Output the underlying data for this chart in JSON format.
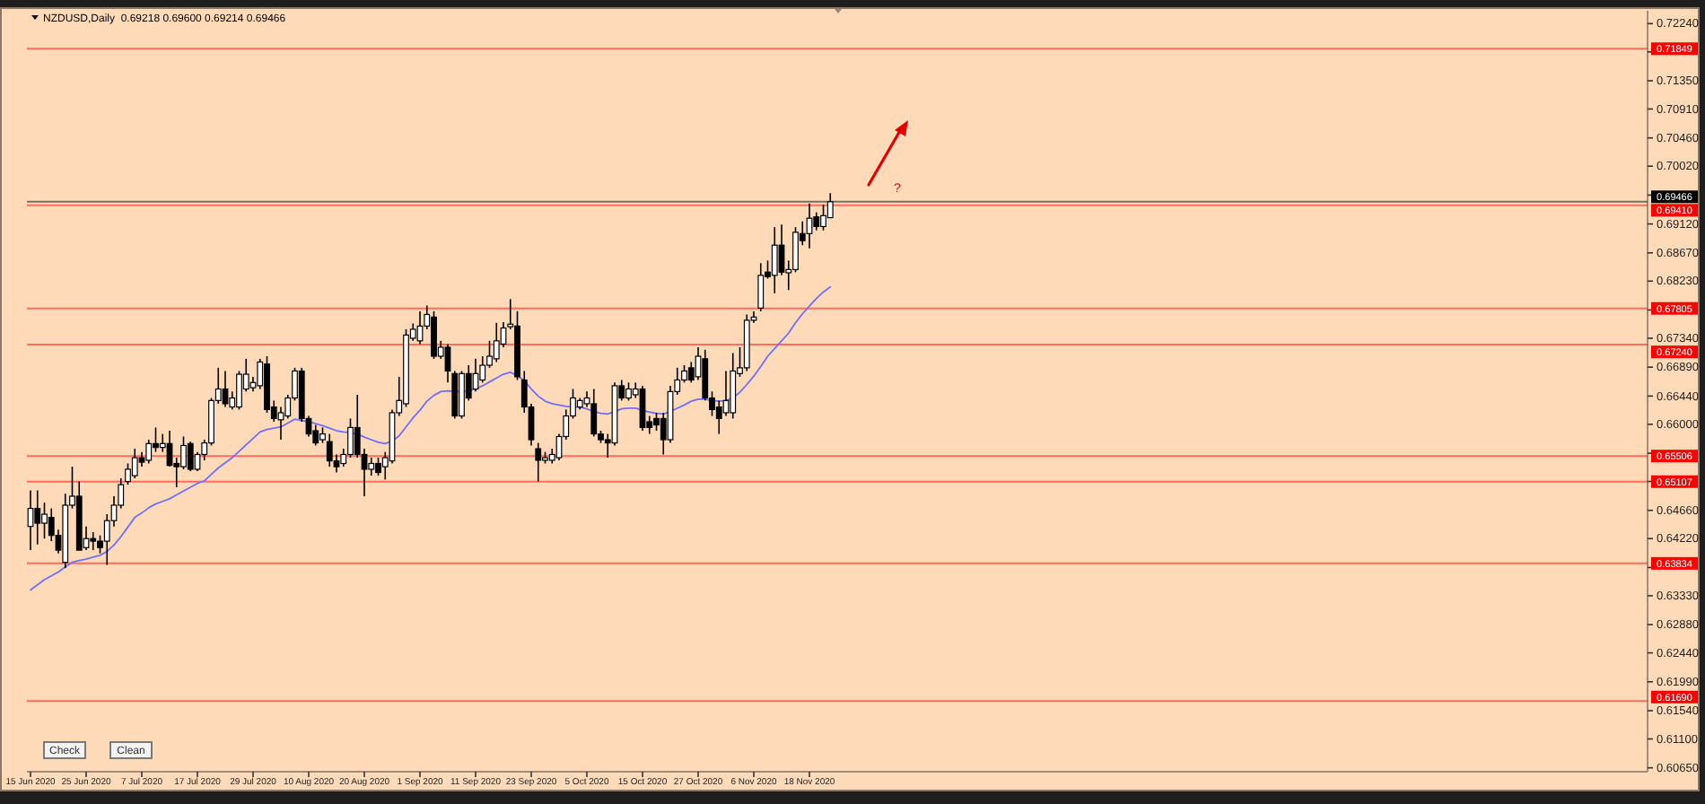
{
  "chart_data": {
    "type": "candlestick",
    "title": "NZDUSD,Daily  0.69218 0.69600 0.69214 0.69466",
    "categories": [
      "15 Jun 2020",
      null,
      null,
      null,
      null,
      null,
      null,
      null,
      "25 Jun 2020",
      null,
      null,
      null,
      null,
      null,
      null,
      null,
      "7 Jul 2020",
      null,
      null,
      null,
      null,
      null,
      null,
      null,
      "17 Jul 2020",
      null,
      null,
      null,
      null,
      null,
      null,
      null,
      "29 Jul 2020",
      null,
      null,
      null,
      null,
      null,
      null,
      null,
      "10 Aug 2020",
      null,
      null,
      null,
      null,
      null,
      null,
      null,
      "20 Aug 2020",
      null,
      null,
      null,
      null,
      null,
      null,
      null,
      "1 Sep 2020",
      null,
      null,
      null,
      null,
      null,
      null,
      null,
      "11 Sep 2020",
      null,
      null,
      null,
      null,
      null,
      null,
      null,
      "23 Sep 2020",
      null,
      null,
      null,
      null,
      null,
      null,
      null,
      "5 Oct 2020",
      null,
      null,
      null,
      null,
      null,
      null,
      null,
      "15 Oct 2020",
      null,
      null,
      null,
      null,
      null,
      null,
      null,
      "27 Oct 2020",
      null,
      null,
      null,
      null,
      null,
      null,
      null,
      "6 Nov 2020",
      null,
      null,
      null,
      null,
      null,
      null,
      null,
      "18 Nov 2020",
      null,
      null,
      null,
      null,
      null,
      null,
      null,
      null,
      null,
      null,
      null,
      null,
      null,
      null,
      null,
      null,
      null,
      null,
      null,
      null,
      null,
      null,
      null,
      null,
      null,
      null,
      null,
      null,
      null,
      null,
      null,
      null,
      null,
      null,
      null,
      null,
      null,
      null,
      null,
      null,
      null,
      null,
      null,
      null,
      null,
      null,
      null,
      null,
      null,
      null,
      null,
      null,
      null,
      null,
      null,
      null,
      null,
      null,
      null,
      null,
      null,
      null,
      null,
      null,
      null,
      null,
      null,
      null,
      null,
      null,
      null,
      null,
      null,
      null,
      null,
      null,
      null,
      null,
      null,
      null,
      null,
      null,
      null,
      null,
      null,
      null,
      null,
      null,
      null,
      null,
      null,
      null,
      null,
      null,
      null,
      null,
      null,
      null,
      null,
      null,
      null,
      null,
      null,
      null,
      null,
      null,
      null,
      null,
      null,
      null,
      null,
      null,
      null,
      null,
      null,
      null,
      null,
      null,
      null,
      null
    ],
    "ylim": [
      0.6059,
      0.7244
    ],
    "yticks": [
      {
        "value": 0.6065,
        "label": "0.60650"
      },
      {
        "value": 0.611,
        "label": "0.61100"
      },
      {
        "value": 0.6154,
        "label": "0.61540"
      },
      {
        "value": 0.6199,
        "label": "0.61990"
      },
      {
        "value": 0.6244,
        "label": "0.62440"
      },
      {
        "value": 0.6288,
        "label": "0.62880"
      },
      {
        "value": 0.6333,
        "label": "0.63330"
      },
      {
        "value": 0.6377,
        "label": null
      },
      {
        "value": 0.6422,
        "label": "0.64220"
      },
      {
        "value": 0.6466,
        "label": "0.64660"
      },
      {
        "value": 0.6511,
        "label": null
      },
      {
        "value": 0.6555,
        "label": null
      },
      {
        "value": 0.66,
        "label": "0.66000"
      },
      {
        "value": 0.6644,
        "label": "0.66440"
      },
      {
        "value": 0.6689,
        "label": "0.66890"
      },
      {
        "value": 0.6734,
        "label": "0.67340"
      },
      {
        "value": 0.6778,
        "label": null
      },
      {
        "value": 0.6823,
        "label": "0.68230"
      },
      {
        "value": 0.6867,
        "label": "0.68670"
      },
      {
        "value": 0.6912,
        "label": "0.69120"
      },
      {
        "value": 0.6957,
        "label": null
      },
      {
        "value": 0.7002,
        "label": "0.70020"
      },
      {
        "value": 0.7046,
        "label": "0.70460"
      },
      {
        "value": 0.7091,
        "label": "0.70910"
      },
      {
        "value": 0.7135,
        "label": "0.71350"
      },
      {
        "value": 0.718,
        "label": null
      },
      {
        "value": 0.7224,
        "label": "0.72240"
      }
    ],
    "series": [
      {
        "type": "line",
        "color": "#6f6fff",
        "values": [
          0.6342,
          0.635,
          0.6358,
          0.6364,
          0.637,
          0.6378,
          0.6385,
          0.6388,
          0.639,
          0.6393,
          0.6396,
          0.6402,
          0.6412,
          0.6425,
          0.644,
          0.6455,
          0.6462,
          0.647,
          0.6476,
          0.648,
          0.6484,
          0.649,
          0.6496,
          0.6502,
          0.6508,
          0.6512,
          0.6522,
          0.6532,
          0.654,
          0.6548,
          0.6558,
          0.6568,
          0.6578,
          0.6588,
          0.6592,
          0.6594,
          0.6596,
          0.6602,
          0.6608,
          0.6606,
          0.6604,
          0.6601,
          0.6598,
          0.6594,
          0.659,
          0.6588,
          0.6587,
          0.6585,
          0.658,
          0.6576,
          0.6572,
          0.657,
          0.6574,
          0.6582,
          0.6596,
          0.661,
          0.6622,
          0.6636,
          0.6645,
          0.6651,
          0.6652,
          0.6651,
          0.6651,
          0.6652,
          0.6655,
          0.666,
          0.6666,
          0.6672,
          0.6678,
          0.6681,
          0.6676,
          0.6668,
          0.6655,
          0.6644,
          0.6636,
          0.6632,
          0.663,
          0.6628,
          0.6627,
          0.6627,
          0.6624,
          0.662,
          0.6617,
          0.6616,
          0.662,
          0.6624,
          0.6625,
          0.6625,
          0.6622,
          0.6619,
          0.6617,
          0.6616,
          0.662,
          0.6625,
          0.663,
          0.6636,
          0.6639,
          0.6639,
          0.6637,
          0.6636,
          0.6637,
          0.6641,
          0.665,
          0.6662,
          0.6675,
          0.669,
          0.6706,
          0.6718,
          0.673,
          0.6742,
          0.6758,
          0.6772,
          0.6784,
          0.6796,
          0.6806,
          0.6814,
          null,
          null,
          null,
          null,
          null,
          null,
          null,
          null,
          null,
          null,
          null,
          null,
          null,
          null,
          null,
          null,
          null,
          null,
          null,
          null,
          null,
          null,
          null,
          null,
          null,
          null,
          null,
          null,
          null,
          null,
          null,
          null,
          null,
          null,
          null,
          null,
          null,
          null,
          null,
          null,
          null,
          null,
          null,
          null,
          null,
          null,
          null,
          null,
          null,
          null,
          null,
          null,
          null,
          null,
          null,
          null,
          null,
          null,
          null,
          null,
          null,
          null,
          null,
          null,
          null,
          null,
          null,
          null,
          null,
          null,
          null,
          null,
          null,
          null,
          null,
          null,
          null,
          null,
          null,
          null,
          null,
          null,
          null,
          null,
          null,
          null,
          null,
          null,
          null,
          null,
          null,
          null,
          null,
          null,
          null,
          null,
          null,
          null,
          null,
          null,
          null,
          null,
          null,
          null,
          null,
          null,
          null,
          null,
          null,
          null,
          null,
          null,
          null,
          null,
          null,
          null,
          null
        ]
      },
      {
        "color": "#000000",
        "ohlc": [
          [
            0.6441,
            0.6497,
            0.6404,
            0.6469
          ],
          [
            0.6469,
            0.6497,
            0.6413,
            0.6446
          ],
          [
            0.6446,
            0.6478,
            0.6422,
            0.646
          ],
          [
            0.6455,
            0.6469,
            0.6418,
            0.6427
          ],
          [
            0.6427,
            0.6436,
            0.6399,
            0.6404
          ],
          [
            0.6385,
            0.6492,
            0.6376,
            0.6474
          ],
          [
            0.6474,
            0.6534,
            0.6469,
            0.6488
          ],
          [
            0.6488,
            0.6511,
            0.6404,
            0.6404
          ],
          [
            0.6408,
            0.6441,
            0.6404,
            0.6422
          ],
          [
            0.6422,
            0.6432,
            0.6404,
            0.6418
          ],
          [
            0.6418,
            0.6427,
            0.6399,
            0.6408
          ],
          [
            0.6418,
            0.646,
            0.6381,
            0.645
          ],
          [
            0.645,
            0.6488,
            0.6441,
            0.6474
          ],
          [
            0.6474,
            0.6516,
            0.6469,
            0.6506
          ],
          [
            0.6511,
            0.6539,
            0.6506,
            0.653
          ],
          [
            0.652,
            0.6562,
            0.6516,
            0.6548
          ],
          [
            0.6548,
            0.6557,
            0.6534,
            0.6541
          ],
          [
            0.6544,
            0.6576,
            0.6539,
            0.657
          ],
          [
            0.657,
            0.6595,
            0.6557,
            0.6564
          ],
          [
            0.6564,
            0.6585,
            0.6557,
            0.657
          ],
          [
            0.657,
            0.659,
            0.6534,
            0.6536
          ],
          [
            0.6539,
            0.6548,
            0.6502,
            0.6534
          ],
          [
            0.6534,
            0.6581,
            0.653,
            0.6567
          ],
          [
            0.657,
            0.6573,
            0.6527,
            0.653
          ],
          [
            0.653,
            0.6557,
            0.6527,
            0.6553
          ],
          [
            0.6553,
            0.6576,
            0.6544,
            0.6571
          ],
          [
            0.6571,
            0.6641,
            0.6567,
            0.6637
          ],
          [
            0.6637,
            0.6688,
            0.6632,
            0.6655
          ],
          [
            0.6655,
            0.6683,
            0.6627,
            0.6632
          ],
          [
            0.6627,
            0.6651,
            0.6623,
            0.6641
          ],
          [
            0.6627,
            0.6683,
            0.6623,
            0.6678
          ],
          [
            0.6655,
            0.6702,
            0.6651,
            0.6678
          ],
          [
            0.6657,
            0.6674,
            0.6651,
            0.6665
          ],
          [
            0.666,
            0.6702,
            0.6655,
            0.6697
          ],
          [
            0.6694,
            0.6706,
            0.6618,
            0.6623
          ],
          [
            0.6627,
            0.6637,
            0.6604,
            0.6609
          ],
          [
            0.6607,
            0.6627,
            0.6576,
            0.6618
          ],
          [
            0.6613,
            0.6646,
            0.6609,
            0.6641
          ],
          [
            0.6641,
            0.6688,
            0.6637,
            0.6683
          ],
          [
            0.6683,
            0.6688,
            0.6604,
            0.6609
          ],
          [
            0.6609,
            0.6613,
            0.6581,
            0.6585
          ],
          [
            0.659,
            0.6599,
            0.6567,
            0.6571
          ],
          [
            0.6576,
            0.6595,
            0.6571,
            0.6585
          ],
          [
            0.6573,
            0.6585,
            0.6534,
            0.6543
          ],
          [
            0.6543,
            0.6553,
            0.6525,
            0.6534
          ],
          [
            0.6539,
            0.6562,
            0.6534,
            0.6553
          ],
          [
            0.6553,
            0.6609,
            0.6548,
            0.6595
          ],
          [
            0.6595,
            0.6646,
            0.6548,
            0.6553
          ],
          [
            0.6553,
            0.6562,
            0.6488,
            0.653
          ],
          [
            0.653,
            0.6548,
            0.652,
            0.6539
          ],
          [
            0.6539,
            0.6548,
            0.652,
            0.6525
          ],
          [
            0.6534,
            0.6557,
            0.6514,
            0.6548
          ],
          [
            0.6543,
            0.6623,
            0.6539,
            0.6618
          ],
          [
            0.6618,
            0.6674,
            0.6613,
            0.6637
          ],
          [
            0.6632,
            0.6748,
            0.6627,
            0.6739
          ],
          [
            0.6734,
            0.6757,
            0.673,
            0.6748
          ],
          [
            0.673,
            0.6776,
            0.6725,
            0.6753
          ],
          [
            0.6753,
            0.6785,
            0.6748,
            0.6771
          ],
          [
            0.6767,
            0.6776,
            0.6702,
            0.6706
          ],
          [
            0.6706,
            0.673,
            0.6702,
            0.672
          ],
          [
            0.672,
            0.6725,
            0.6665,
            0.6683
          ],
          [
            0.6679,
            0.6683,
            0.6609,
            0.6613
          ],
          [
            0.6613,
            0.6683,
            0.6609,
            0.6679
          ],
          [
            0.6679,
            0.6692,
            0.6637,
            0.6641
          ],
          [
            0.6655,
            0.6702,
            0.6651,
            0.6679
          ],
          [
            0.6669,
            0.6706,
            0.6665,
            0.6692
          ],
          [
            0.6692,
            0.673,
            0.6688,
            0.6706
          ],
          [
            0.6702,
            0.6758,
            0.6697,
            0.673
          ],
          [
            0.6725,
            0.6759,
            0.672,
            0.675
          ],
          [
            0.6752,
            0.6795,
            0.6748,
            0.6756
          ],
          [
            0.6753,
            0.6776,
            0.6669,
            0.6674
          ],
          [
            0.6669,
            0.6683,
            0.6618,
            0.6627
          ],
          [
            0.6627,
            0.6632,
            0.6567,
            0.6576
          ],
          [
            0.6562,
            0.6571,
            0.6511,
            0.6544
          ],
          [
            0.6544,
            0.6557,
            0.6539,
            0.6548
          ],
          [
            0.6544,
            0.6562,
            0.6539,
            0.6553
          ],
          [
            0.6548,
            0.6585,
            0.6544,
            0.6581
          ],
          [
            0.6581,
            0.6623,
            0.6576,
            0.6613
          ],
          [
            0.6613,
            0.6655,
            0.6609,
            0.6641
          ],
          [
            0.6627,
            0.6641,
            0.6623,
            0.6637
          ],
          [
            0.6632,
            0.6651,
            0.6627,
            0.6641
          ],
          [
            0.6632,
            0.6655,
            0.6581,
            0.6585
          ],
          [
            0.6585,
            0.659,
            0.6571,
            0.6576
          ],
          [
            0.6576,
            0.6585,
            0.6548,
            0.6571
          ],
          [
            0.6571,
            0.6665,
            0.6567,
            0.666
          ],
          [
            0.666,
            0.6669,
            0.6637,
            0.6641
          ],
          [
            0.6641,
            0.6665,
            0.6637,
            0.6655
          ],
          [
            0.6646,
            0.6665,
            0.6641,
            0.6655
          ],
          [
            0.6655,
            0.666,
            0.659,
            0.6595
          ],
          [
            0.6604,
            0.6613,
            0.6585,
            0.6595
          ],
          [
            0.6609,
            0.6618,
            0.659,
            0.6599
          ],
          [
            0.6609,
            0.6618,
            0.6553,
            0.6576
          ],
          [
            0.6576,
            0.666,
            0.6571,
            0.6651
          ],
          [
            0.6651,
            0.6688,
            0.6646,
            0.6669
          ],
          [
            0.6669,
            0.6692,
            0.6665,
            0.6683
          ],
          [
            0.6688,
            0.6697,
            0.6665,
            0.6669
          ],
          [
            0.6674,
            0.672,
            0.6669,
            0.6706
          ],
          [
            0.6702,
            0.6716,
            0.6637,
            0.6641
          ],
          [
            0.6641,
            0.6651,
            0.6613,
            0.6623
          ],
          [
            0.6627,
            0.6637,
            0.6585,
            0.6609
          ],
          [
            0.6618,
            0.6683,
            0.6613,
            0.6637
          ],
          [
            0.6618,
            0.6711,
            0.6609,
            0.6683
          ],
          [
            0.6679,
            0.672,
            0.6674,
            0.6688
          ],
          [
            0.6688,
            0.6771,
            0.6683,
            0.6762
          ],
          [
            0.6762,
            0.6776,
            0.6758,
            0.6767
          ],
          [
            0.6781,
            0.6851,
            0.6776,
            0.6832
          ],
          [
            0.6837,
            0.6855,
            0.6827,
            0.683
          ],
          [
            0.6832,
            0.6907,
            0.6804,
            0.6879
          ],
          [
            0.6879,
            0.6911,
            0.6832,
            0.6837
          ],
          [
            0.6836,
            0.6855,
            0.6809,
            0.6841
          ],
          [
            0.6841,
            0.6907,
            0.6837,
            0.6899
          ],
          [
            0.6897,
            0.6916,
            0.6879,
            0.6886
          ],
          [
            0.6897,
            0.6944,
            0.6874,
            0.6921
          ],
          [
            0.6923,
            0.693,
            0.6902,
            0.6908
          ],
          [
            0.6908,
            0.6942,
            0.6902,
            0.6925
          ],
          [
            0.69218,
            0.696,
            0.69214,
            0.69466
          ],
          null,
          null,
          null,
          null,
          null,
          null,
          null,
          null,
          null,
          null,
          null,
          null,
          null,
          null,
          null,
          null,
          null,
          null,
          null,
          null,
          null,
          null,
          null,
          null,
          null,
          null,
          null,
          null,
          null,
          null,
          null,
          null,
          null,
          null,
          null,
          null,
          null,
          null,
          null,
          null,
          null,
          null,
          null,
          null,
          null,
          null,
          null,
          null,
          null,
          null,
          null,
          null,
          null,
          null,
          null,
          null,
          null,
          null,
          null,
          null,
          null,
          null,
          null,
          null,
          null,
          null,
          null,
          null,
          null,
          null,
          null,
          null,
          null,
          null,
          null,
          null,
          null,
          null,
          null,
          null,
          null,
          null,
          null,
          null,
          null,
          null,
          null,
          null,
          null,
          null,
          null,
          null,
          null,
          null,
          null,
          null,
          null,
          null,
          null,
          null,
          null,
          null,
          null,
          null,
          null,
          null,
          null,
          null,
          null,
          null,
          null,
          null,
          null,
          null,
          null,
          null,
          null
        ]
      }
    ],
    "ref_lines": [
      {
        "axis": "y",
        "value": 0.71849,
        "label": "0.71849",
        "color": "#ff0000"
      },
      {
        "axis": "y",
        "value": 0.69466,
        "label": "0.69466",
        "color": "#000000"
      },
      {
        "axis": "y",
        "value": 0.6941,
        "label": "0.69410",
        "color": "#ff0000"
      },
      {
        "axis": "y",
        "value": 0.67805,
        "label": "0.67805",
        "color": "#ff0000"
      },
      {
        "axis": "y",
        "value": 0.6724,
        "label": "0.67240",
        "color": "#ff0000"
      },
      {
        "axis": "y",
        "value": 0.65506,
        "label": "0.65506",
        "color": "#ff0000"
      },
      {
        "axis": "y",
        "value": 0.65107,
        "label": "0.65107",
        "color": "#ff0000"
      },
      {
        "axis": "y",
        "value": 0.63834,
        "label": "0.63834",
        "color": "#ff0000"
      },
      {
        "axis": "y",
        "value": 0.6169,
        "label": "0.61690",
        "color": "#ff0000"
      }
    ],
    "annotations": [
      "?",
      "Check",
      "Clean"
    ]
  }
}
